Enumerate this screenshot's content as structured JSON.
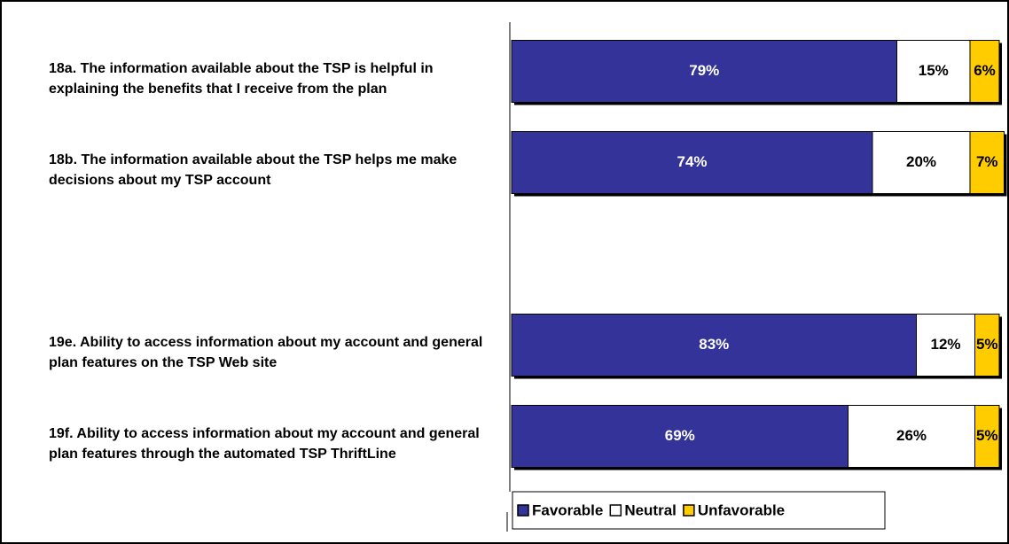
{
  "chart_data": {
    "type": "stacked-barh",
    "categories": [
      "18a. The information available about the TSP is helpful in explaining the benefits that I receive from the plan",
      "18b. The information available about the TSP helps me make decisions about my TSP account",
      null,
      "19e. Ability to access information about my account and general plan features on the TSP Web site",
      "19f.  Ability to access information about my account and general plan features through the automated TSP ThriftLine"
    ],
    "series": [
      {
        "name": "Favorable",
        "color": "#333399",
        "values": [
          79,
          74,
          null,
          83,
          69
        ],
        "value_labels": [
          "79%",
          "74%",
          null,
          "83%",
          "69%"
        ]
      },
      {
        "name": "Neutral",
        "color": "#ffffff",
        "values": [
          15,
          20,
          null,
          12,
          26
        ],
        "value_labels": [
          "15%",
          "20%",
          null,
          "12%",
          "26%"
        ]
      },
      {
        "name": "Unfavorable",
        "color": "#ffcc00",
        "values": [
          6,
          7,
          null,
          5,
          5
        ],
        "value_labels": [
          "6%",
          "7%",
          null,
          "5%",
          "5%"
        ]
      }
    ],
    "xlim": [
      0,
      100
    ]
  }
}
